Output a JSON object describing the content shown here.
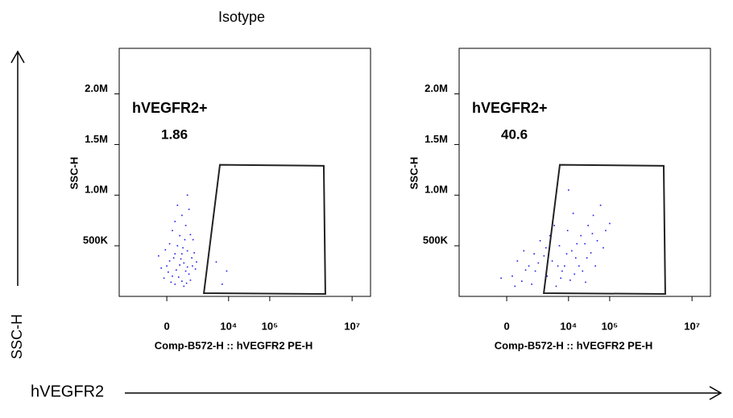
{
  "shared_y_label": "SSC-H",
  "shared_x_label": "hVEGFR2",
  "chart_data": [
    {
      "type": "scatter",
      "title": "Isotype",
      "x_label": "Comp-B572-H :: hVEGFR2 PE-H",
      "y_label": "SSC-H",
      "xscale": "biexponential",
      "xlim": [
        -4500,
        28000000
      ],
      "ylim": [
        0,
        2450000
      ],
      "xticks": [
        0,
        {
          "value": 10000,
          "label": "10⁴"
        },
        {
          "value": 100000,
          "label": "10⁵"
        },
        {
          "value": 10000000,
          "label": "10⁷"
        }
      ],
      "yticks": [
        {
          "value": 500000,
          "label": "500K"
        },
        {
          "value": 1000000,
          "label": "1.0M"
        },
        {
          "value": 1500000,
          "label": "1.5M"
        },
        {
          "value": 2000000,
          "label": "2.0M"
        }
      ],
      "gate": {
        "name": "hVEGFR2+",
        "value": 1.86,
        "x": [
          6140,
          2050000,
          2240000,
          2470
        ],
        "y": [
          1300000,
          1290000,
          24000,
          32000
        ]
      },
      "series": [
        {
          "color": "#1a1aee",
          "x": [
            100,
            300,
            -200,
            500,
            800,
            200,
            1200,
            600,
            0,
            400,
            900,
            -100,
            700,
            1500,
            300,
            1000,
            500,
            200,
            800,
            1300,
            600,
            400,
            900,
            -300,
            100,
            1100,
            700,
            250,
            1400,
            50,
            650,
            350,
            1600,
            900,
            150,
            750,
            450,
            1100,
            -50,
            550,
            1000,
            300,
            1250,
            850,
            600,
            5000,
            9000,
            7000
          ],
          "y": [
            350000,
            420000,
            280000,
            310000,
            250000,
            200000,
            380000,
            150000,
            300000,
            500000,
            450000,
            180000,
            330000,
            270000,
            120000,
            220000,
            600000,
            650000,
            700000,
            560000,
            800000,
            900000,
            1000000,
            400000,
            520000,
            160000,
            100000,
            380000,
            430000,
            240000,
            480000,
            260000,
            340000,
            290000,
            140000,
            560000,
            190000,
            610000,
            460000,
            370000,
            860000,
            740000,
            300000,
            130000,
            420000,
            340000,
            250000,
            120000
          ]
        }
      ]
    },
    {
      "type": "scatter",
      "x_label": "Comp-B572-H :: hVEGFR2 PE-H",
      "y_label": "SSC-H",
      "xscale": "biexponential",
      "xlim": [
        -4500,
        28000000
      ],
      "ylim": [
        0,
        2450000
      ],
      "xticks": [
        0,
        {
          "value": 10000,
          "label": "10⁴"
        },
        {
          "value": 100000,
          "label": "10⁵"
        },
        {
          "value": 10000000,
          "label": "10⁷"
        }
      ],
      "yticks": [
        {
          "value": 500000,
          "label": "500K"
        },
        {
          "value": 1000000,
          "label": "1.0M"
        },
        {
          "value": 1500000,
          "label": "1.5M"
        },
        {
          "value": 2000000,
          "label": "2.0M"
        }
      ],
      "gate": {
        "name": "hVEGFR2+",
        "value": 40.6,
        "x": [
          6140,
          2050000,
          2240000,
          2470
        ],
        "y": [
          1300000,
          1290000,
          24000,
          32000
        ]
      },
      "series": [
        {
          "color": "#1a1aee",
          "x": [
            200,
            600,
            1000,
            1500,
            2500,
            4000,
            6000,
            8000,
            12000,
            20000,
            30000,
            50000,
            80000,
            3000,
            5000,
            9000,
            15000,
            25000,
            40000,
            60000,
            10000,
            18000,
            2000,
            700,
            400,
            -200,
            1200,
            3500,
            7000,
            11000,
            22000,
            35000,
            45000,
            70000,
            100000,
            1800,
            800,
            2800,
            4500,
            13000,
            28000,
            6500,
            16000,
            38000,
            9500,
            300,
            1400,
            5500,
            14000,
            26000
          ],
          "y": [
            200000,
            150000,
            300000,
            250000,
            400000,
            350000,
            500000,
            300000,
            450000,
            600000,
            700000,
            550000,
            650000,
            200000,
            100000,
            420000,
            380000,
            520000,
            800000,
            900000,
            1050000,
            300000,
            550000,
            450000,
            350000,
            180000,
            120000,
            600000,
            250000,
            160000,
            250000,
            430000,
            300000,
            480000,
            720000,
            330000,
            260000,
            480000,
            700000,
            820000,
            380000,
            180000,
            520000,
            620000,
            650000,
            100000,
            420000,
            300000,
            220000,
            140000
          ]
        }
      ]
    }
  ]
}
